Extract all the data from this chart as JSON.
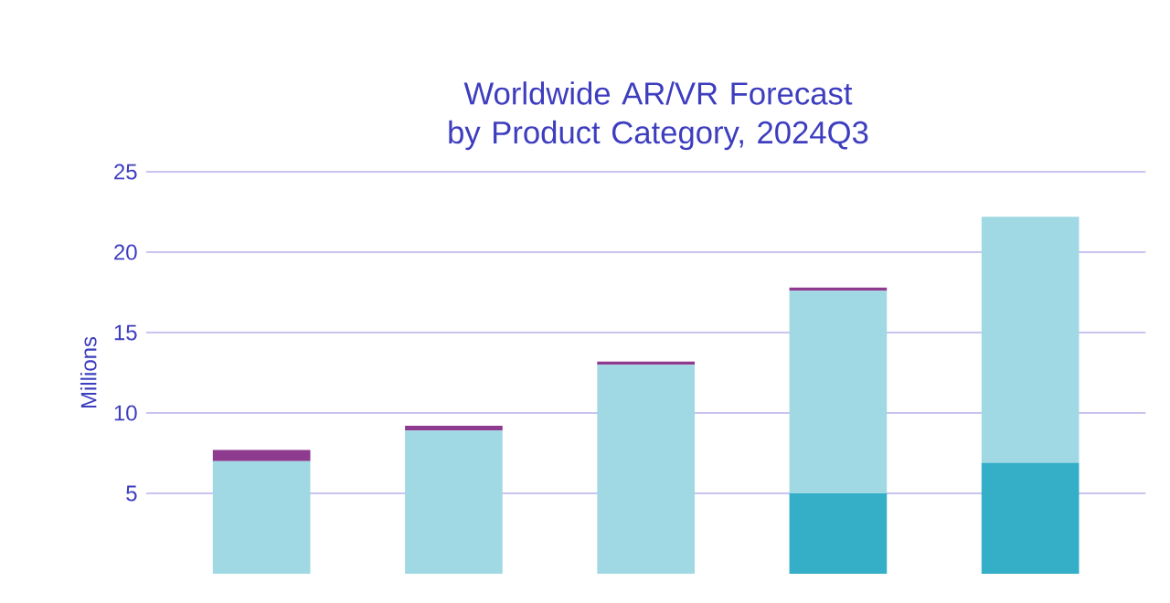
{
  "chart_data": {
    "type": "bar",
    "title": "Worldwide AR/VR Forecast by Product Category, 2024Q3",
    "ylabel": "Millions",
    "categories": [
      null,
      null,
      null,
      null,
      null
    ],
    "stacked": true,
    "series": [
      {
        "color": "#35aec7",
        "values": [
          0,
          0,
          0,
          5,
          6.9
        ]
      },
      {
        "color": "#a0d9e4",
        "values": [
          7,
          8.9,
          13,
          12.6,
          15.3
        ]
      },
      {
        "color": "#8e3a8e",
        "values": [
          0.7,
          0.3,
          0.2,
          0.2,
          0
        ]
      }
    ],
    "ylim": [
      0,
      25
    ],
    "yticks": [
      5,
      10,
      15,
      20,
      25
    ],
    "grid": "y",
    "tick_labels": "y"
  }
}
